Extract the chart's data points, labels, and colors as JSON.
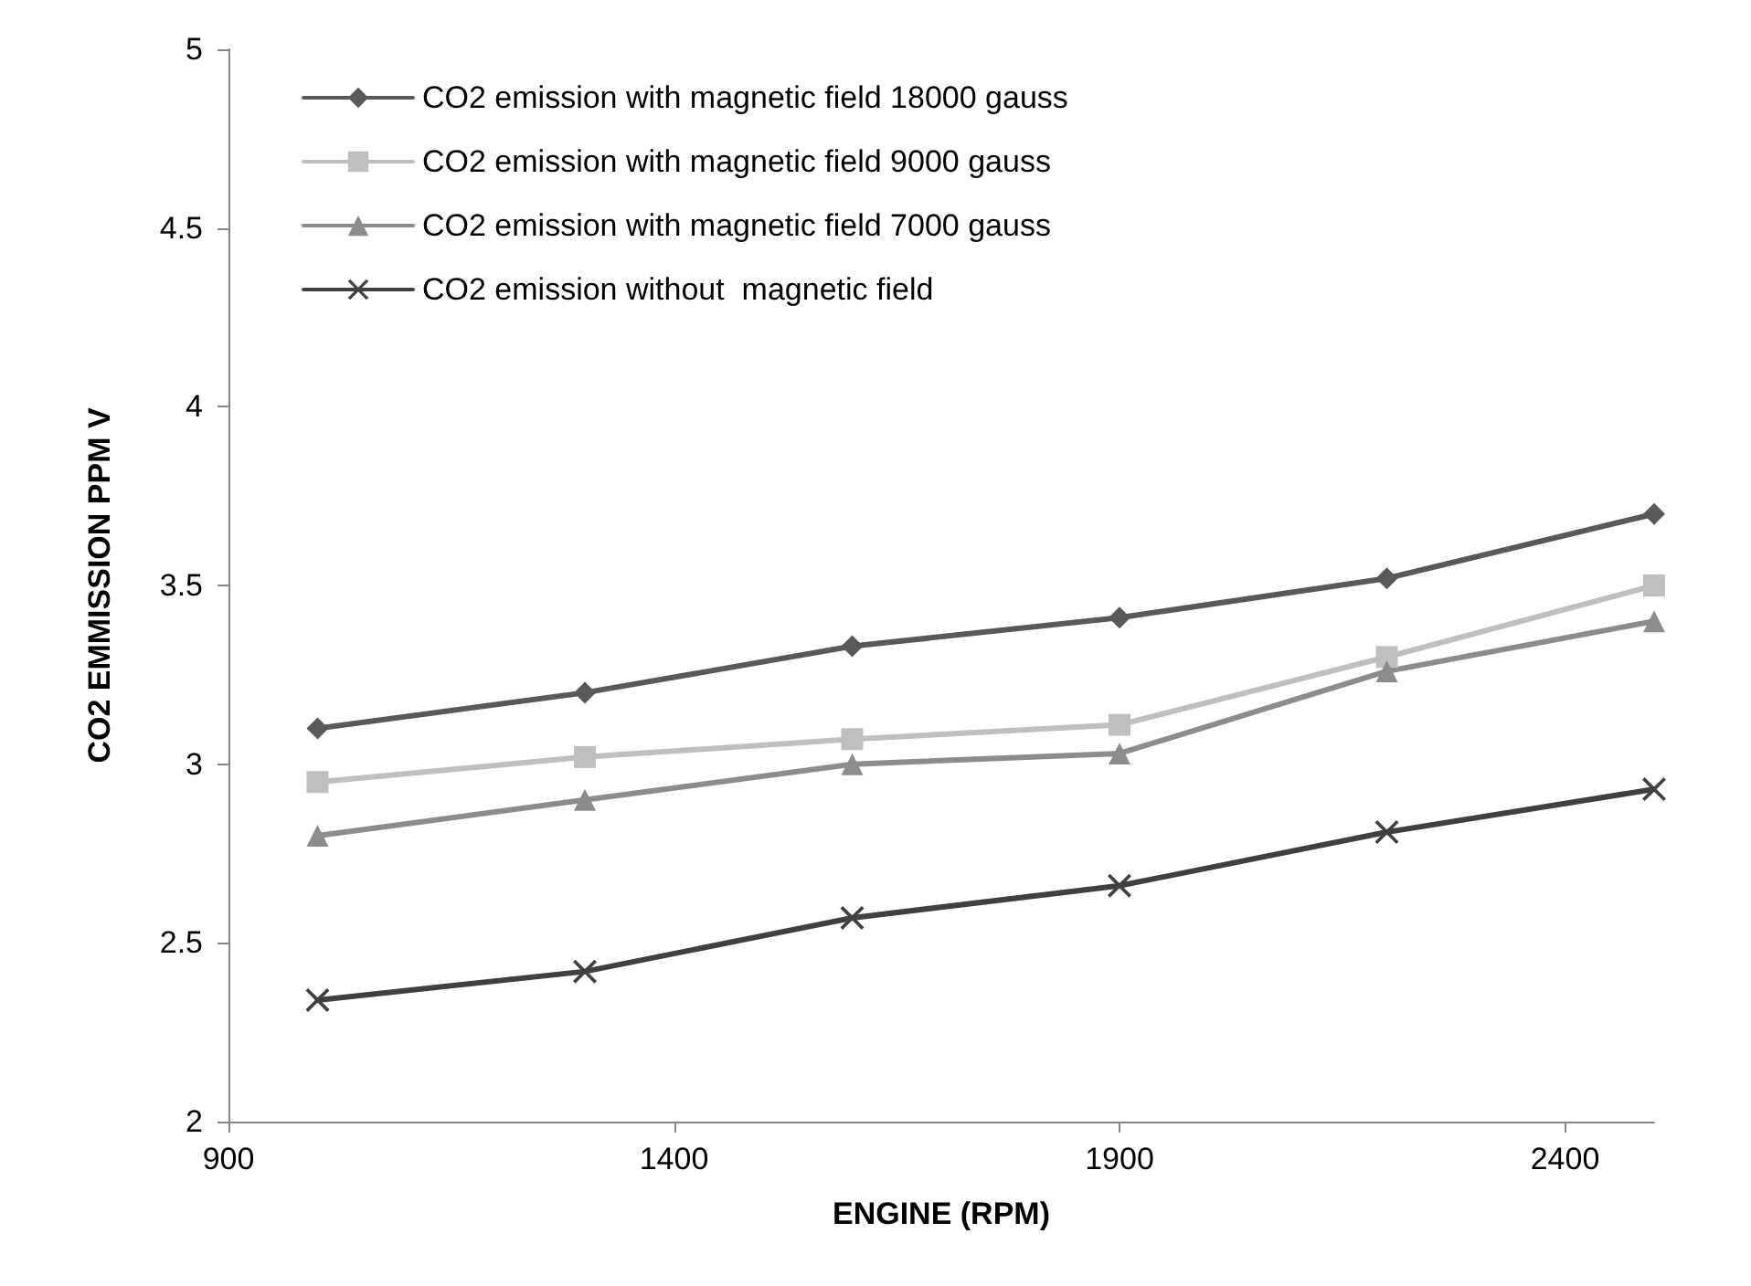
{
  "chart_data": {
    "type": "line",
    "xlabel": "ENGINE (RPM)",
    "ylabel": "CO2 EMMISSION PPM V",
    "x": [
      1000,
      1300,
      1600,
      1900,
      2200,
      2500
    ],
    "series": [
      {
        "name": "CO2 emission with magnetic field 18000 gauss",
        "color": "#595959",
        "marker": "diamond",
        "values": [
          3.1,
          3.2,
          3.33,
          3.41,
          3.52,
          3.7
        ]
      },
      {
        "name": "CO2 emission with magnetic field 9000 gauss",
        "color": "#bfbfbf",
        "marker": "square",
        "values": [
          2.95,
          3.02,
          3.07,
          3.11,
          3.3,
          3.5
        ]
      },
      {
        "name": "CO2 emission with magnetic field 7000 gauss",
        "color": "#8c8c8c",
        "marker": "triangle",
        "values": [
          2.8,
          2.9,
          3.0,
          3.03,
          3.26,
          3.4
        ]
      },
      {
        "name": "CO2 emission without  magnetic field",
        "color": "#404040",
        "marker": "cross",
        "values": [
          2.34,
          2.42,
          2.57,
          2.66,
          2.81,
          2.93
        ]
      }
    ],
    "xlim": [
      900,
      2500
    ],
    "xticks": [
      900,
      1400,
      1900,
      2400
    ],
    "ylim": [
      2,
      5
    ],
    "yticks": [
      2,
      2.5,
      3,
      3.5,
      4,
      4.5,
      5
    ],
    "grid": false,
    "legend": "top left",
    "line_style": "solid"
  }
}
